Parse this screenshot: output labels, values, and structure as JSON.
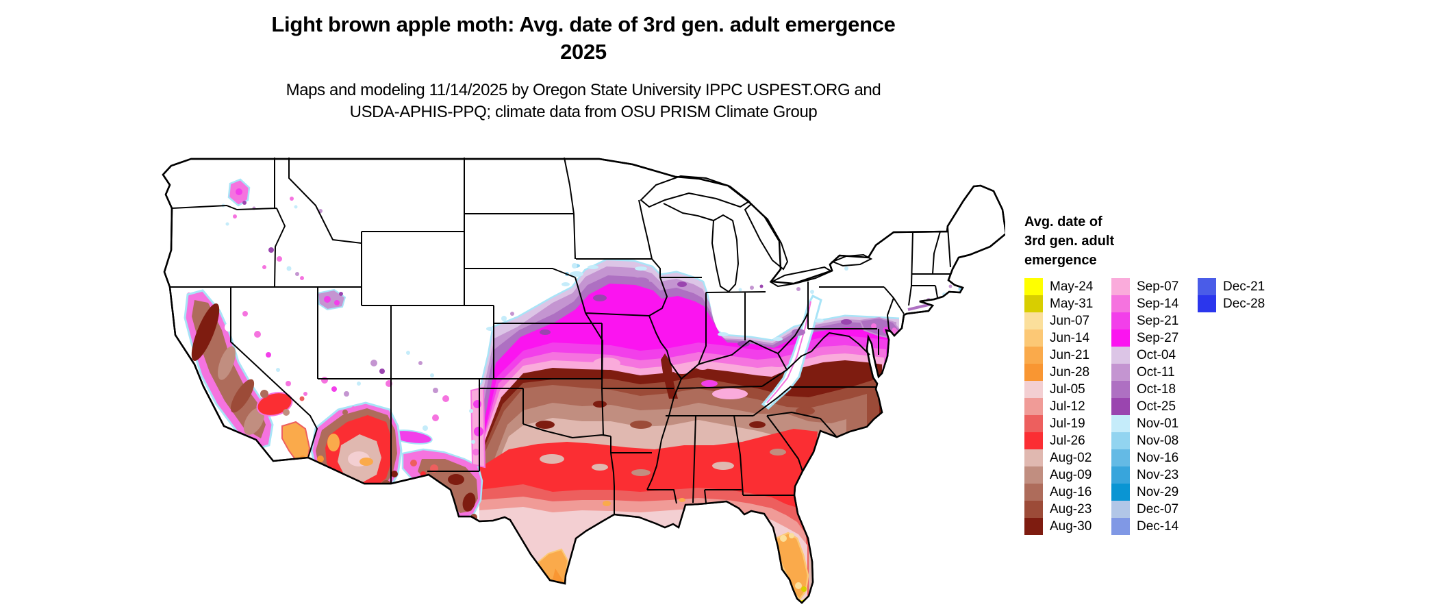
{
  "header": {
    "title_line1": "Light brown apple moth: Avg. date of 3rd gen. adult emergence",
    "title_line2": "2025",
    "subtitle_line1": "Maps and modeling 11/14/2025 by Oregon State University IPPC USPEST.ORG and",
    "subtitle_line2": "USDA-APHIS-PPQ; climate data from OSU PRISM Climate Group"
  },
  "legend": {
    "title_lines": [
      "Avg. date of",
      "3rd gen. adult",
      "emergence"
    ],
    "columns": [
      {
        "entries": [
          {
            "label": "May-24",
            "color": "#FFFF00"
          },
          {
            "label": "May-31",
            "color": "#D8CE00"
          },
          {
            "label": "Jun-07",
            "color": "#FBDF9B"
          },
          {
            "label": "Jun-14",
            "color": "#FCC875"
          },
          {
            "label": "Jun-21",
            "color": "#FAAA4B"
          },
          {
            "label": "Jun-28",
            "color": "#F99632"
          },
          {
            "label": "Jul-05",
            "color": "#F3CFD2"
          },
          {
            "label": "Jul-12",
            "color": "#F09B97"
          },
          {
            "label": "Jul-19",
            "color": "#ED5F5E"
          },
          {
            "label": "Jul-26",
            "color": "#FB2E33"
          },
          {
            "label": "Aug-02",
            "color": "#E0B8B0"
          },
          {
            "label": "Aug-09",
            "color": "#C18E80"
          },
          {
            "label": "Aug-16",
            "color": "#AE6C5B"
          },
          {
            "label": "Aug-23",
            "color": "#9C4B38"
          },
          {
            "label": "Aug-30",
            "color": "#7E1C10"
          }
        ]
      },
      {
        "entries": [
          {
            "label": "Sep-07",
            "color": "#FAABDB"
          },
          {
            "label": "Sep-14",
            "color": "#F573DF"
          },
          {
            "label": "Sep-21",
            "color": "#F23FEA"
          },
          {
            "label": "Sep-27",
            "color": "#FB14F0"
          },
          {
            "label": "Oct-04",
            "color": "#DCC5E6"
          },
          {
            "label": "Oct-11",
            "color": "#C495D1"
          },
          {
            "label": "Oct-18",
            "color": "#AE70C2"
          },
          {
            "label": "Oct-25",
            "color": "#9A45AF"
          },
          {
            "label": "Nov-01",
            "color": "#C5ECFA"
          },
          {
            "label": "Nov-08",
            "color": "#92D4F0"
          },
          {
            "label": "Nov-16",
            "color": "#64BAE5"
          },
          {
            "label": "Nov-23",
            "color": "#38A5DC"
          },
          {
            "label": "Nov-29",
            "color": "#0A95D3"
          },
          {
            "label": "Dec-07",
            "color": "#B1C6E7"
          },
          {
            "label": "Dec-14",
            "color": "#8098E5"
          }
        ]
      },
      {
        "entries": [
          {
            "label": "Dec-21",
            "color": "#4A5CE8"
          },
          {
            "label": "Dec-28",
            "color": "#2B36ED"
          }
        ]
      }
    ]
  }
}
